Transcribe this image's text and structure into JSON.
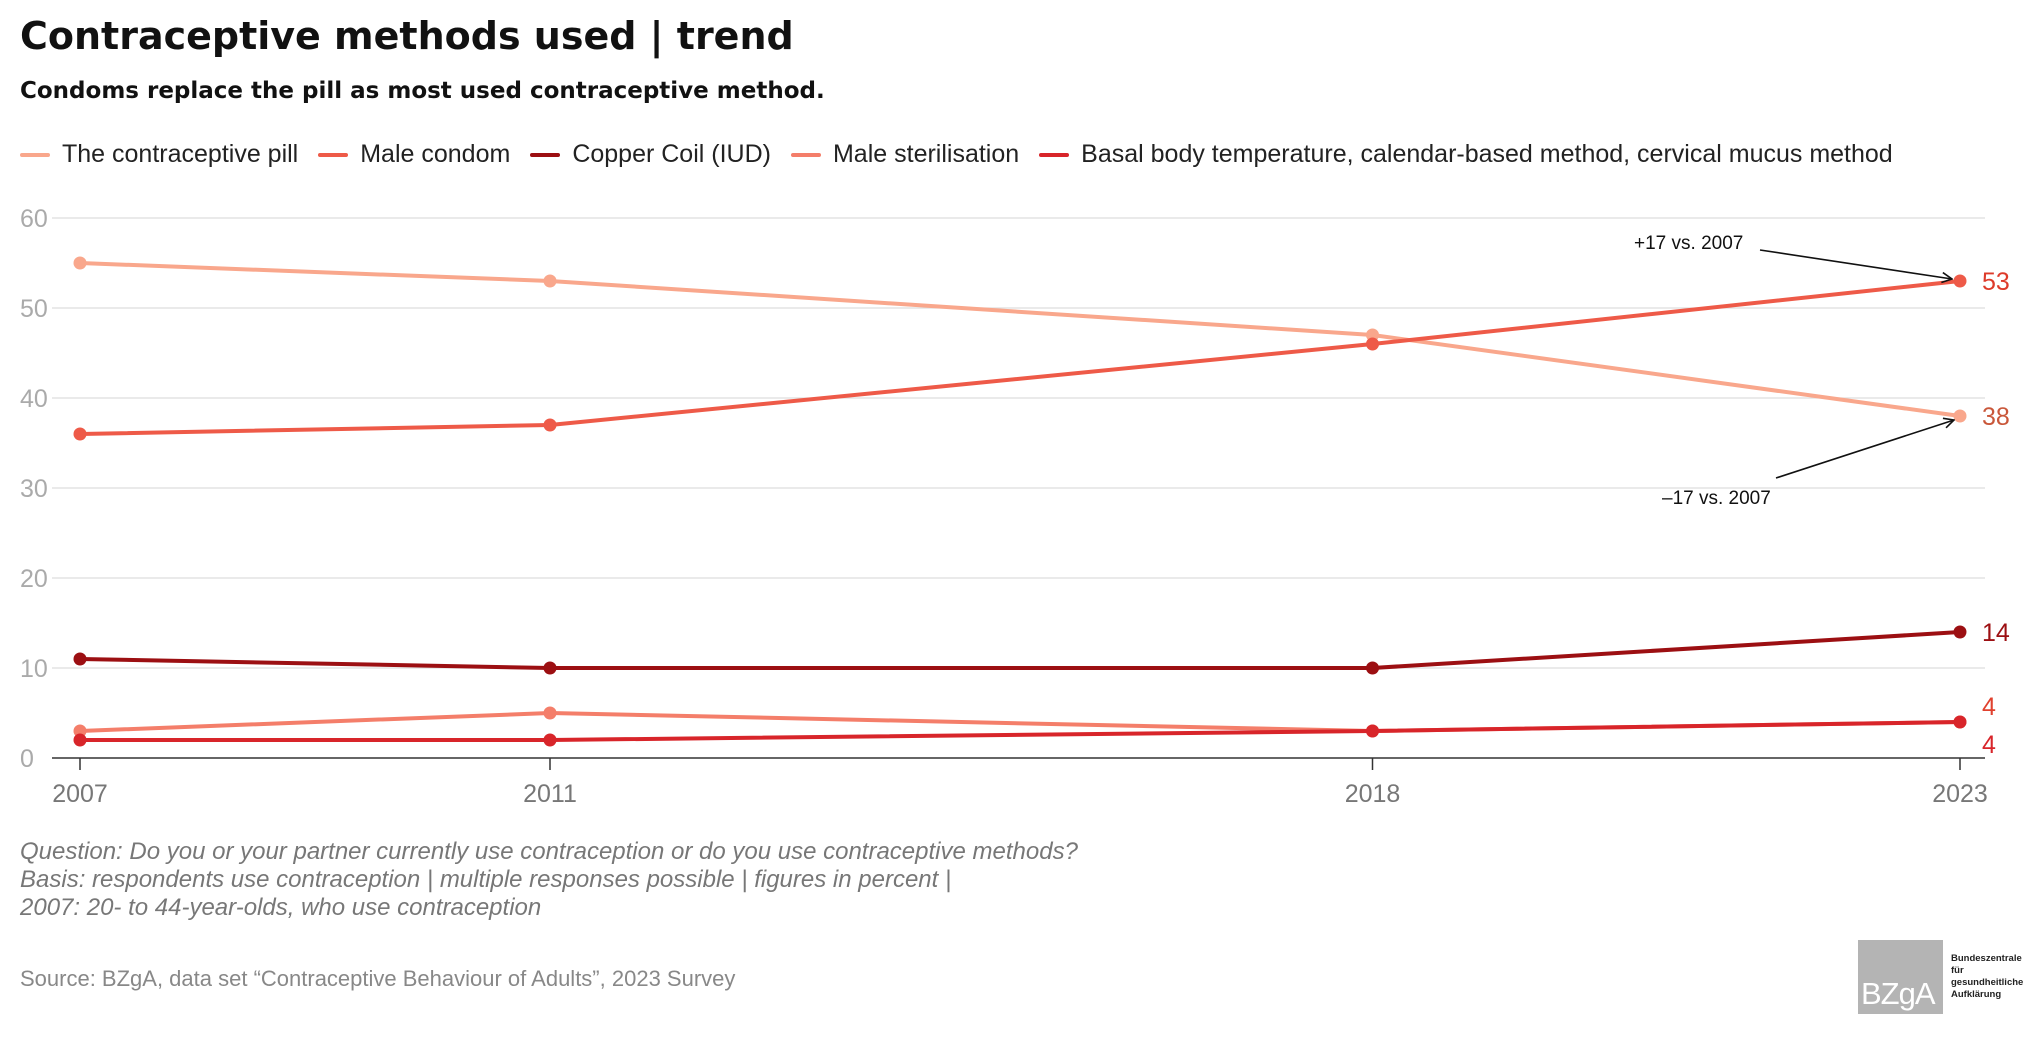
{
  "header": {
    "title": "Contraceptive methods used | trend",
    "subtitle": "Condoms replace the pill as most used contraceptive method."
  },
  "chart_data": {
    "type": "line",
    "x": [
      "2007",
      "2011",
      "2018",
      "2023"
    ],
    "x_values": [
      2007,
      2011,
      2018,
      2023
    ],
    "xlim": [
      2007,
      2023
    ],
    "ylim": [
      0,
      60
    ],
    "yticks": [
      0,
      10,
      20,
      30,
      40,
      50,
      60
    ],
    "grid": true,
    "legend_position": "top",
    "series": [
      {
        "name": "The contraceptive pill",
        "color": "#f9a78c",
        "values": [
          55,
          53,
          47,
          38
        ],
        "end_label": "38",
        "end_label_color": "#c9573a"
      },
      {
        "name": "Male condom",
        "color": "#ee5a48",
        "values": [
          36,
          37,
          46,
          53
        ],
        "end_label": "53",
        "end_label_color": "#dd3b2a"
      },
      {
        "name": "Copper Coil (IUD)",
        "color": "#9c0f12",
        "values": [
          11,
          10,
          10,
          14
        ],
        "end_label": "14",
        "end_label_color": "#9c0f12"
      },
      {
        "name": "Male sterilisation",
        "color": "#f47e6a",
        "values": [
          3,
          5,
          3,
          4
        ],
        "end_label": "4",
        "end_label_color": "#e0412e"
      },
      {
        "name": "Basal body temperature, calendar-based method, cervical mucus method",
        "color": "#d8252a",
        "values": [
          2,
          2,
          3,
          4
        ],
        "end_label": "4",
        "end_label_color": "#d8252a"
      }
    ],
    "annotations": [
      {
        "text": "+17 vs. 2007",
        "series": "Male condom",
        "year": 2023
      },
      {
        "text": "–17 vs. 2007",
        "series": "The contraceptive pill",
        "year": 2023
      }
    ]
  },
  "notes": [
    "Question: Do you or your partner currently use contraception or do you use contraceptive methods?",
    "Basis: respondents use contraception | multiple responses possible | figures in percent |",
    "2007: 20- to 44-year-olds, who use contraception"
  ],
  "source": "Source: BZgA, data set “Contraceptive Behaviour of Adults”, 2023 Survey",
  "logo": {
    "mark": "BZgA",
    "lines": [
      "Bundeszentrale",
      "für",
      "gesundheitliche",
      "Aufklärung"
    ]
  }
}
